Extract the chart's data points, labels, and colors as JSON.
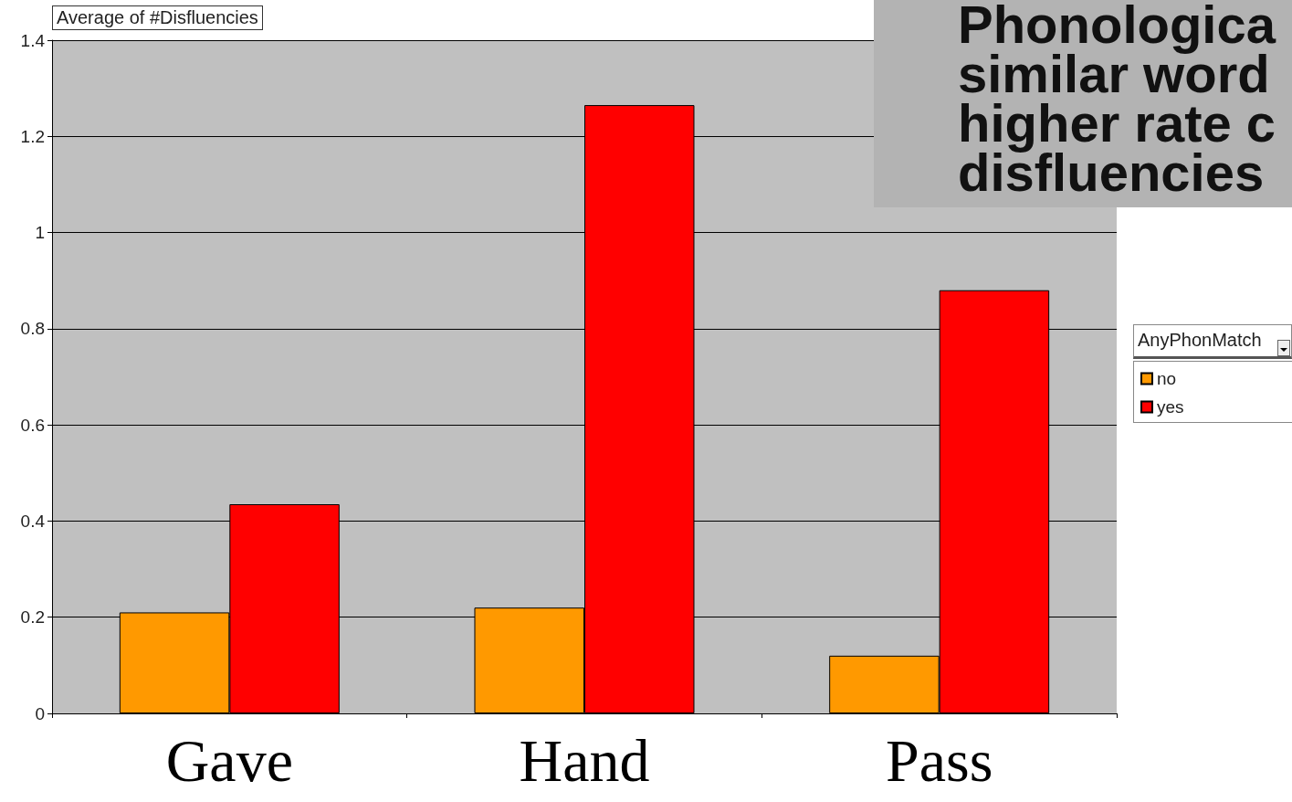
{
  "chart_data": {
    "type": "bar",
    "ylabel": "Average of #Disfluencies",
    "legend_title": "AnyPhonMatch",
    "annotations": [
      "Phonologica\nsimilar word\nhigher rate c\ndisfluencies"
    ],
    "categories": [
      "Gave",
      "Hand",
      "Pass"
    ],
    "series": [
      {
        "name": "no",
        "color": "#ff9900",
        "values": [
          0.21,
          0.22,
          0.12
        ]
      },
      {
        "name": "yes",
        "color": "#ff0000",
        "values": [
          0.435,
          1.265,
          0.88
        ]
      }
    ],
    "ylim": [
      0,
      1.4
    ],
    "yticks": [
      0,
      0.2,
      0.4,
      0.6,
      0.8,
      1,
      1.2,
      1.4
    ],
    "grid": "y",
    "legend": "right"
  }
}
